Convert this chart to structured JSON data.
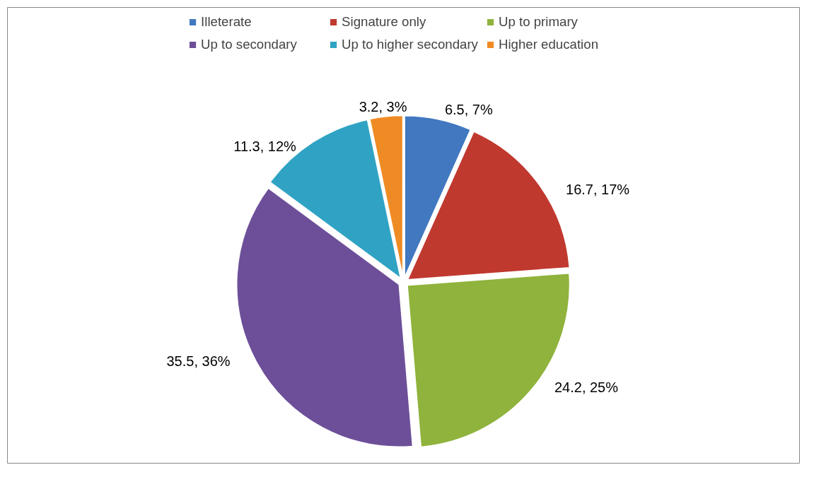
{
  "chart_data": {
    "type": "pie",
    "categories": [
      "Illeterate",
      "Signature only",
      "Up to primary",
      "Up to secondary",
      "Up to higher secondary",
      "Higher education"
    ],
    "values": [
      6.5,
      16.7,
      24.2,
      35.5,
      11.3,
      3.2
    ],
    "colors": [
      "#4178c0",
      "#c0392f",
      "#8fb33c",
      "#6d4f99",
      "#30a3c4",
      "#ef8b25"
    ],
    "value_labels": [
      "6.5, 7%",
      "16.7, 17%",
      "24.2, 25%",
      "35.5, 36%",
      "11.3, 12%",
      "3.2, 3%"
    ],
    "legend": "top"
  }
}
